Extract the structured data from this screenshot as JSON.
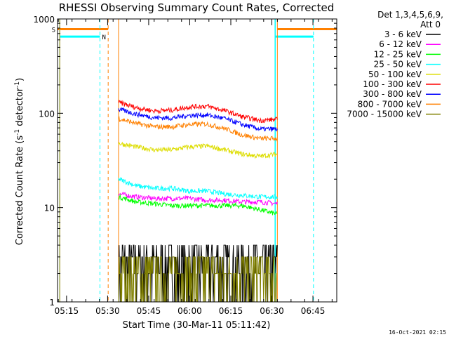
{
  "chart_data": {
    "type": "line",
    "title": "RHESSI Observing Summary Count Rates, Corrected",
    "xlabel": "Start Time (30-Mar-11 05:11:42)",
    "ylabel_main": "Corrected Count Rate (s",
    "ylabel_sup1": "-1",
    "ylabel_mid": " detector",
    "ylabel_sup2": "-1",
    "ylabel_end": ")",
    "yscale": "log",
    "ylim": [
      1,
      1000
    ],
    "xlim_min": [
      0,
      102
    ],
    "x_tick_labels": [
      "05:15",
      "05:30",
      "05:45",
      "06:00",
      "06:15",
      "06:30",
      "06:45"
    ],
    "x_tick_values_min": [
      3.3,
      18.3,
      33.3,
      48.3,
      63.3,
      78.3,
      93.3
    ],
    "y_tick_labels": [
      "1",
      "10",
      "100",
      "1000"
    ],
    "y_tick_values": [
      1,
      10,
      100,
      1000
    ],
    "legend_header": [
      "Det 1,3,4,5,6,9,",
      "Att 0"
    ],
    "legend_position": "right",
    "footer_timestamp": "16-Oct-2021 02:15",
    "flag_labels": {
      "saa": "S",
      "night": "N"
    },
    "data_start_min": 22.3,
    "data_end_min": 80.3,
    "series": [
      {
        "name": "3 - 6 keV",
        "color": "#000000",
        "kind": "noise",
        "low": 1.0,
        "high": 4.0
      },
      {
        "name": "6 - 12 keV",
        "color": "#ff00ff",
        "kind": "trend",
        "values": [
          14,
          13,
          12.5,
          12.5,
          12.5,
          12,
          12,
          11.5,
          11.5,
          11
        ]
      },
      {
        "name": "12 - 25 keV",
        "color": "#00ff00",
        "kind": "trend",
        "values": [
          13,
          11.5,
          11,
          10.5,
          10.5,
          10.5,
          10.5,
          10.5,
          9.5,
          8.5
        ]
      },
      {
        "name": "25 - 50 keV",
        "color": "#00ffff",
        "kind": "trend",
        "values": [
          20,
          17,
          16,
          16,
          15,
          15,
          14,
          13.5,
          13,
          13
        ]
      },
      {
        "name": "50 - 100 keV",
        "color": "#dddd00",
        "kind": "trend",
        "values": [
          48,
          44,
          41,
          41,
          44,
          45,
          41,
          37,
          35,
          37
        ]
      },
      {
        "name": "100 - 300 keV",
        "color": "#ff0000",
        "kind": "trend",
        "values": [
          130,
          115,
          106,
          108,
          117,
          119,
          107,
          92,
          84,
          86
        ]
      },
      {
        "name": "300 - 800 keV",
        "color": "#0000ff",
        "kind": "trend",
        "values": [
          110,
          98,
          90,
          89,
          95,
          96,
          88,
          76,
          68,
          68
        ]
      },
      {
        "name": "800 - 7000 keV",
        "color": "#ff8000",
        "kind": "trend",
        "values": [
          88,
          78,
          72,
          72,
          76,
          77,
          69,
          59,
          54,
          54
        ]
      },
      {
        "name": "7000 - 15000 keV",
        "color": "#808000",
        "kind": "noise",
        "low": 1.0,
        "high": 3.0
      }
    ],
    "saa_segments_min": [
      [
        0,
        18.5
      ],
      [
        80.3,
        102
      ]
    ],
    "night_segments_min": [
      [
        0.8,
        15.5
      ],
      [
        79.5,
        93.5
      ]
    ]
  }
}
